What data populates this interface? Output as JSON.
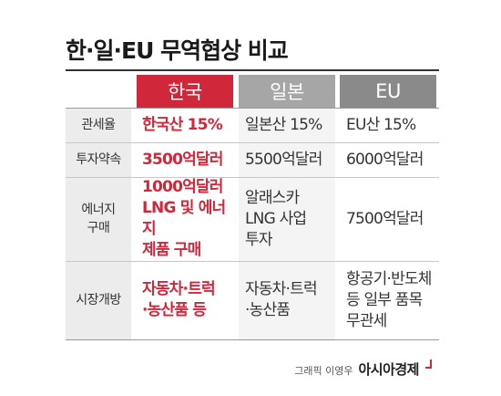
{
  "title": "한·일·EU 무역협상 비교",
  "colors": {
    "korea": "#d0273a",
    "japan": "#a6a6a6",
    "eu": "#8a8a8a",
    "label_bg": "#ececec",
    "japan_bg": "#f4f4f4"
  },
  "columns": {
    "korea": "한국",
    "japan": "일본",
    "eu": "EU"
  },
  "rows": [
    {
      "label": "관세율",
      "korea": "한국산 15%",
      "japan": "일본산 15%",
      "eu": "EU산 15%"
    },
    {
      "label": "투자약속",
      "korea": "3500억달러",
      "japan": "5500억달러",
      "eu": "6000억달러"
    },
    {
      "label": "에너지\n구매",
      "korea": "1000억달러\nLNG 및 에너지\n제품 구매",
      "japan": "알래스카\nLNG 사업\n투자",
      "eu": "7500억달러"
    },
    {
      "label": "시장개방",
      "korea": "자동차·트럭\n·농산품 등",
      "japan": "자동차·트럭\n·농산품",
      "eu": "항공기·반도체\n등 일부 품목\n무관세"
    }
  ],
  "credit": {
    "graphic": "그래픽 이영우",
    "brand": "아시아경제"
  }
}
